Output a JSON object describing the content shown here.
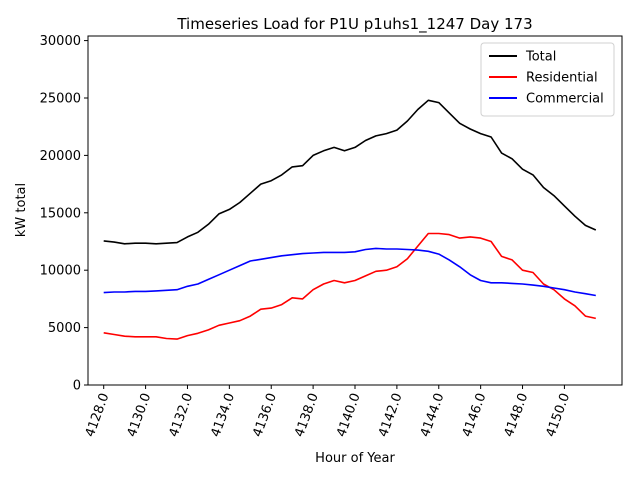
{
  "chart_data": {
    "type": "line",
    "title": "Timeseries Load for P1U p1uhs1_1247  Day 173",
    "xlabel": "Hour of Year",
    "ylabel": "kW total",
    "xlim": [
      4127.25,
      4152.75
    ],
    "ylim": [
      0,
      30400
    ],
    "x_ticks": [
      4128,
      4130,
      4132,
      4134,
      4136,
      4138,
      4140,
      4142,
      4144,
      4146,
      4148,
      4150
    ],
    "x_tick_labels": [
      "4128.0",
      "4130.0",
      "4132.0",
      "4134.0",
      "4136.0",
      "4138.0",
      "4140.0",
      "4142.0",
      "4144.0",
      "4146.0",
      "4148.0",
      "4150.0"
    ],
    "y_ticks": [
      0,
      5000,
      10000,
      15000,
      20000,
      25000,
      30000
    ],
    "y_tick_labels": [
      "0",
      "5000",
      "10000",
      "15000",
      "20000",
      "25000",
      "30000"
    ],
    "legend_position": "top-right",
    "x": [
      4128.0,
      4128.5,
      4129.0,
      4129.5,
      4130.0,
      4130.5,
      4131.0,
      4131.5,
      4132.0,
      4132.5,
      4133.0,
      4133.5,
      4134.0,
      4134.5,
      4135.0,
      4135.5,
      4136.0,
      4136.5,
      4137.0,
      4137.5,
      4138.0,
      4138.5,
      4139.0,
      4139.5,
      4140.0,
      4140.5,
      4141.0,
      4141.5,
      4142.0,
      4142.5,
      4143.0,
      4143.5,
      4144.0,
      4144.5,
      4145.0,
      4145.5,
      4146.0,
      4146.5,
      4147.0,
      4147.5,
      4148.0,
      4148.5,
      4149.0,
      4149.5,
      4150.0,
      4150.5,
      4151.0,
      4151.5
    ],
    "series": [
      {
        "name": "Total",
        "color": "#000000",
        "values": [
          12550,
          12450,
          12300,
          12350,
          12350,
          12300,
          12350,
          12400,
          12900,
          13300,
          14000,
          14900,
          15300,
          15900,
          16700,
          17500,
          17800,
          18300,
          19000,
          19100,
          20000,
          20400,
          20700,
          20400,
          20700,
          21300,
          21700,
          21900,
          22200,
          23000,
          24000,
          24800,
          24600,
          23700,
          22800,
          22300,
          21900,
          21600,
          20200,
          19700,
          18800,
          18300,
          17200,
          16500,
          15600,
          14700,
          13900,
          13500
        ]
      },
      {
        "name": "Residential",
        "color": "#ff0000",
        "values": [
          4550,
          4400,
          4250,
          4200,
          4200,
          4200,
          4050,
          4000,
          4300,
          4500,
          4800,
          5200,
          5400,
          5600,
          6000,
          6600,
          6700,
          7000,
          7600,
          7500,
          8300,
          8800,
          9100,
          8900,
          9100,
          9500,
          9900,
          10000,
          10300,
          11000,
          12100,
          13200,
          13200,
          13100,
          12800,
          12900,
          12800,
          12500,
          11200,
          10900,
          10000,
          9800,
          8800,
          8300,
          7500,
          6900,
          6000,
          5800
        ]
      },
      {
        "name": "Commercial",
        "color": "#0000ff",
        "values": [
          8050,
          8100,
          8100,
          8150,
          8150,
          8200,
          8250,
          8300,
          8600,
          8800,
          9200,
          9600,
          10000,
          10400,
          10800,
          10950,
          11100,
          11250,
          11350,
          11450,
          11500,
          11550,
          11550,
          11550,
          11600,
          11800,
          11900,
          11850,
          11850,
          11800,
          11750,
          11650,
          11400,
          10900,
          10300,
          9600,
          9100,
          8900,
          8900,
          8850,
          8800,
          8700,
          8600,
          8450,
          8300,
          8100,
          7950,
          7800
        ]
      }
    ]
  }
}
